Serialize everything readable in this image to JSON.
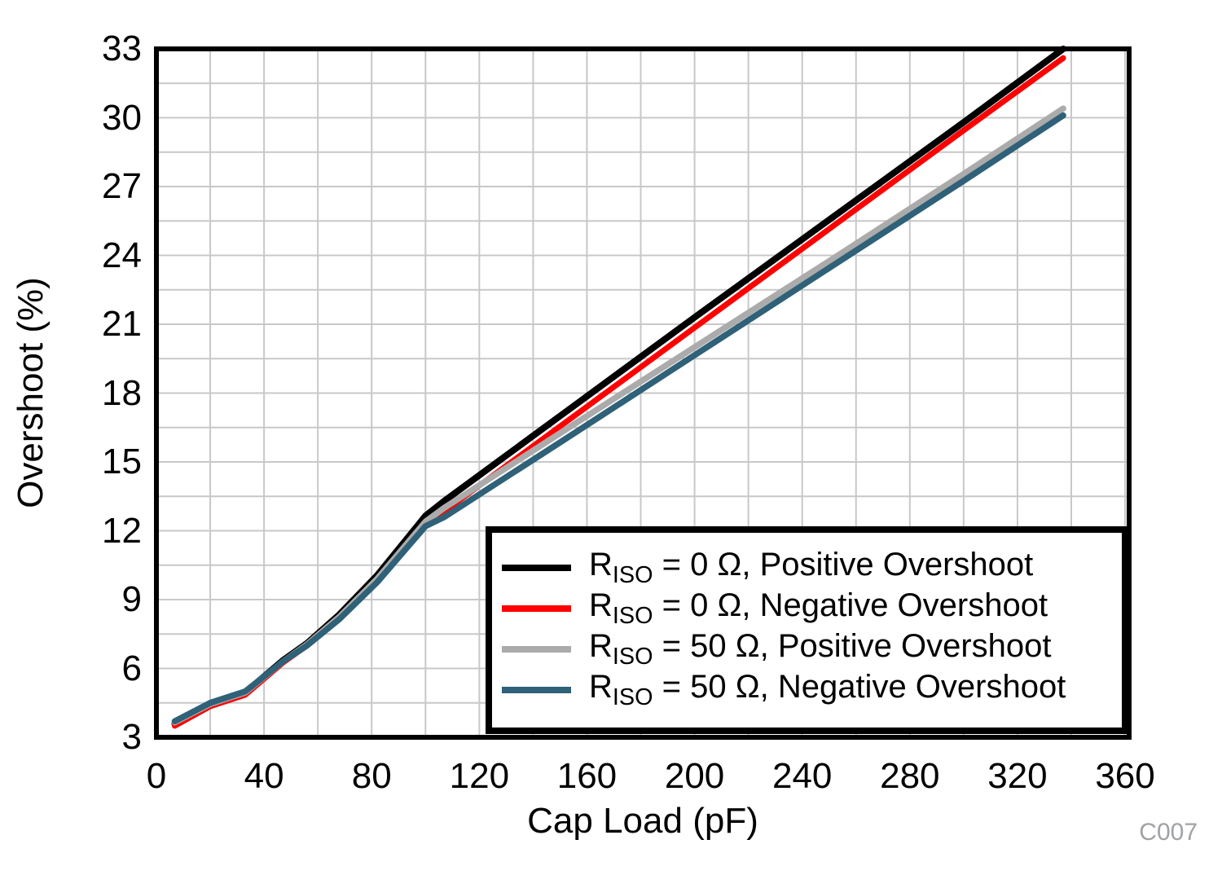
{
  "figure": {
    "background": "#ffffff",
    "frame_color": "#000000",
    "grid_color": "#c8c8c8",
    "watermark": "C007",
    "watermark_color": "#a0a2a5"
  },
  "chart_data": {
    "type": "line",
    "title": "",
    "xlabel": "Cap Load (pF)",
    "ylabel": "Overshoot (%)",
    "xlim": [
      0,
      361.5
    ],
    "ylim": [
      3,
      33
    ],
    "x_ticks": [
      0,
      40,
      80,
      120,
      160,
      200,
      240,
      280,
      320,
      360
    ],
    "y_ticks": [
      3,
      6,
      9,
      12,
      15,
      18,
      21,
      24,
      27,
      30,
      33
    ],
    "x_minor_step": 20,
    "y_minor_step": 1.5,
    "grid": true,
    "legend_position": "inside-bottom-right",
    "x": [
      6.8,
      20,
      33,
      47,
      56,
      68,
      82,
      100,
      107,
      150,
      200,
      250,
      300,
      337
    ],
    "series": [
      {
        "name": "RISO = 0 Ω, Positive Overshoot",
        "label": {
          "pre": "R",
          "sub": "ISO",
          "rest": " = 0 Ω, Positive Overshoot"
        },
        "color": "#000000",
        "stroke_width": 8,
        "values": [
          3.6,
          4.45,
          4.95,
          6.35,
          7.1,
          8.35,
          10.05,
          12.65,
          13.3,
          17.0,
          21.3,
          25.55,
          29.8,
          33.0
        ]
      },
      {
        "name": "RISO = 0 Ω, Negative Overshoot",
        "label": {
          "pre": "R",
          "sub": "ISO",
          "rest": " = 0 Ω, Negative Overshoot"
        },
        "color": "#ff0000",
        "stroke_width": 7,
        "values": [
          3.5,
          4.35,
          4.85,
          6.25,
          7.0,
          8.2,
          9.85,
          12.3,
          12.85,
          16.55,
          20.85,
          25.15,
          29.45,
          32.6
        ]
      },
      {
        "name": "RISO = 50 Ω, Positive Overshoot",
        "label": {
          "pre": "R",
          "sub": "ISO",
          "rest": " = 50 Ω, Positive Overshoot"
        },
        "color": "#ababab",
        "stroke_width": 7.5,
        "values": [
          3.65,
          4.45,
          4.95,
          6.3,
          7.05,
          8.25,
          9.9,
          12.4,
          13.0,
          16.25,
          20.0,
          23.75,
          27.55,
          30.4
        ]
      },
      {
        "name": "RISO = 50 Ω, Negative Overshoot",
        "label": {
          "pre": "R",
          "sub": "ISO",
          "rest": " = 50 Ω, Negative Overshoot"
        },
        "color": "#2f6178",
        "stroke_width": 7.5,
        "values": [
          3.7,
          4.5,
          5.0,
          6.3,
          7.0,
          8.15,
          9.75,
          12.2,
          12.6,
          15.85,
          19.65,
          23.45,
          27.25,
          30.1
        ]
      }
    ]
  }
}
